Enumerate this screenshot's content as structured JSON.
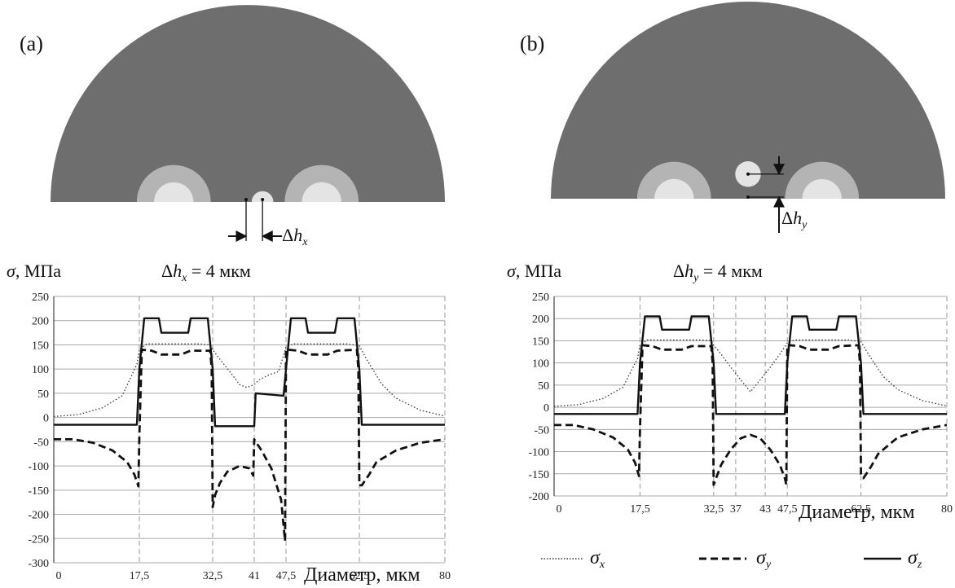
{
  "panels": [
    {
      "label": "(a)",
      "delta_symbol": "Δ",
      "delta_var": "h",
      "delta_sub": "x",
      "offset_caption_main": "Δh",
      "offset_caption_sub": "x",
      "offset_caption_rest": " = 4 мкм",
      "inner_offset": "x"
    },
    {
      "label": "(b)",
      "delta_symbol": "Δ",
      "delta_var": "h",
      "delta_sub": "y",
      "offset_caption_main": "Δh",
      "offset_caption_sub": "y",
      "offset_caption_rest": " = 4 мкм",
      "inner_offset": "y"
    }
  ],
  "y_title_sym": "σ",
  "y_title_unit": ", МПа",
  "x_title": "Диаметр, мкм",
  "legend": {
    "sx": {
      "sym": "σ",
      "sub": "x",
      "style": "dotted"
    },
    "sy": {
      "sym": "σ",
      "sub": "y",
      "style": "dashed"
    },
    "sz": {
      "sym": "σ",
      "sub": "z",
      "style": "solid"
    }
  },
  "colors": {
    "cross_section": "#6e6e6e",
    "ring_outer": "#b4b4b4",
    "ring_inner": "#e4e4e4",
    "grid": "#a8a8a8",
    "marker_lines": "#999999"
  },
  "chart_data": [
    {
      "type": "line",
      "title": "Δh_x = 4 мкм",
      "xlabel": "Диаметр, мкм",
      "ylabel": "σ, МПа",
      "xlim": [
        0,
        80
      ],
      "ylim": [
        -300,
        250
      ],
      "yticks": [
        250,
        200,
        150,
        100,
        50,
        0,
        -50,
        -100,
        -150,
        -200,
        -250,
        -300
      ],
      "xticks": [
        "0",
        "17,5",
        "32,5",
        "41",
        "47,5",
        "62,5",
        "80"
      ],
      "xtick_values": [
        0,
        17.5,
        32.5,
        41,
        47.5,
        62.5,
        80
      ],
      "grid": true,
      "series": [
        {
          "name": "σx",
          "style": "dotted",
          "x": [
            0,
            5,
            10,
            14,
            17,
            17.5,
            19,
            30,
            32,
            32.5,
            34,
            36,
            38,
            39.5,
            41,
            42,
            44,
            46,
            47.5,
            49,
            60,
            62.5,
            64,
            67,
            70,
            75,
            80
          ],
          "y": [
            2,
            6,
            20,
            45,
            110,
            140,
            152,
            152,
            150,
            140,
            120,
            95,
            68,
            62,
            68,
            78,
            88,
            95,
            145,
            152,
            152,
            148,
            120,
            70,
            40,
            15,
            3
          ]
        },
        {
          "name": "σy",
          "style": "dashed",
          "x": [
            0,
            4,
            8,
            12,
            15,
            16.5,
            17.3,
            17.5,
            18,
            20,
            22,
            26,
            28,
            32,
            32.3,
            32.5,
            33,
            34,
            35.5,
            38,
            40,
            40.8,
            41,
            41.3,
            42.5,
            44.5,
            46.5,
            47.3,
            47.5,
            48,
            50,
            52,
            56,
            58,
            62,
            62.3,
            62.5,
            63,
            64.5,
            66,
            70,
            75,
            80
          ],
          "y": [
            -45,
            -45,
            -52,
            -68,
            -92,
            -118,
            -142,
            -40,
            140,
            138,
            130,
            130,
            138,
            138,
            100,
            -185,
            -160,
            -135,
            -112,
            -100,
            -105,
            -120,
            -45,
            -50,
            -68,
            -105,
            -170,
            -255,
            140,
            140,
            138,
            130,
            130,
            138,
            140,
            100,
            -140,
            -140,
            -118,
            -92,
            -68,
            -52,
            -45
          ]
        },
        {
          "name": "σz",
          "style": "solid",
          "x": [
            0,
            17,
            17.5,
            18.5,
            21.5,
            22,
            27.5,
            28,
            31.5,
            32.5,
            33,
            41,
            41.3,
            47,
            47.5,
            48.5,
            51.5,
            52,
            57.5,
            58,
            61.5,
            62.5,
            63,
            80
          ],
          "y": [
            -15,
            -15,
            100,
            205,
            205,
            175,
            175,
            205,
            205,
            100,
            -18,
            -18,
            50,
            45,
            100,
            205,
            205,
            175,
            175,
            205,
            205,
            100,
            -15,
            -15
          ]
        }
      ],
      "inclusions": {
        "matrix_radius": 40,
        "fiber_inner_radius": 4,
        "fiber_outer_radius": 7.5,
        "fiber_x_centers": [
          25,
          55
        ],
        "small_x_center": 43,
        "small_y_center": 0.9,
        "small_radius": 2.2
      }
    },
    {
      "type": "line",
      "title": "Δh_y = 4 мкм",
      "xlabel": "Диаметр, мкм",
      "ylabel": "σ, МПа",
      "xlim": [
        0,
        80
      ],
      "ylim": [
        -200,
        250
      ],
      "yticks": [
        250,
        200,
        150,
        100,
        50,
        0,
        -50,
        -100,
        -150,
        -200
      ],
      "xticks": [
        "0",
        "17,5",
        "32,5",
        "37",
        "43",
        "47,5",
        "62,5",
        "80"
      ],
      "xtick_values": [
        0,
        17.5,
        32.5,
        37,
        43,
        47.5,
        62.5,
        80
      ],
      "grid": true,
      "series": [
        {
          "name": "σx",
          "style": "dotted",
          "x": [
            0,
            5,
            10,
            14,
            17,
            17.5,
            19,
            30,
            32,
            32.5,
            34,
            36,
            38,
            40,
            42,
            44,
            46,
            47.5,
            49,
            60,
            62.5,
            64,
            67,
            70,
            75,
            80
          ],
          "y": [
            2,
            6,
            20,
            45,
            110,
            140,
            152,
            152,
            150,
            140,
            120,
            90,
            62,
            35,
            62,
            90,
            120,
            145,
            152,
            152,
            148,
            120,
            70,
            40,
            15,
            3
          ]
        },
        {
          "name": "σy",
          "style": "dashed",
          "x": [
            0,
            4,
            8,
            12,
            15,
            16.5,
            17.3,
            17.5,
            18,
            20,
            22,
            26,
            28,
            32,
            32.3,
            32.5,
            33,
            34,
            36,
            38,
            40,
            42,
            44,
            46,
            47,
            47.3,
            47.5,
            48,
            50,
            52,
            56,
            58,
            62,
            62.3,
            62.5,
            63,
            64.5,
            66,
            70,
            75,
            80
          ],
          "y": [
            -40,
            -40,
            -50,
            -68,
            -95,
            -125,
            -155,
            -50,
            140,
            138,
            130,
            130,
            138,
            138,
            100,
            -175,
            -160,
            -130,
            -95,
            -70,
            -62,
            -70,
            -95,
            -130,
            -160,
            -175,
            140,
            140,
            138,
            130,
            130,
            138,
            140,
            100,
            -150,
            -160,
            -135,
            -105,
            -68,
            -50,
            -40
          ]
        },
        {
          "name": "σz",
          "style": "solid",
          "x": [
            0,
            17,
            17.5,
            18.5,
            21.5,
            22,
            27.5,
            28,
            31.5,
            32.5,
            33,
            47,
            47.5,
            48.5,
            51.5,
            52,
            57.5,
            58,
            61.5,
            62.5,
            63,
            80
          ],
          "y": [
            -15,
            -15,
            100,
            205,
            205,
            175,
            175,
            205,
            205,
            100,
            -15,
            -15,
            100,
            205,
            205,
            175,
            175,
            205,
            205,
            100,
            -15,
            -15
          ]
        }
      ],
      "inclusions": {
        "matrix_radius": 40,
        "fiber_inner_radius": 4,
        "fiber_outer_radius": 7.5,
        "fiber_x_centers": [
          25,
          55
        ],
        "small_x_center": 40,
        "small_y_center": 5,
        "small_radius": 2.6
      }
    }
  ]
}
